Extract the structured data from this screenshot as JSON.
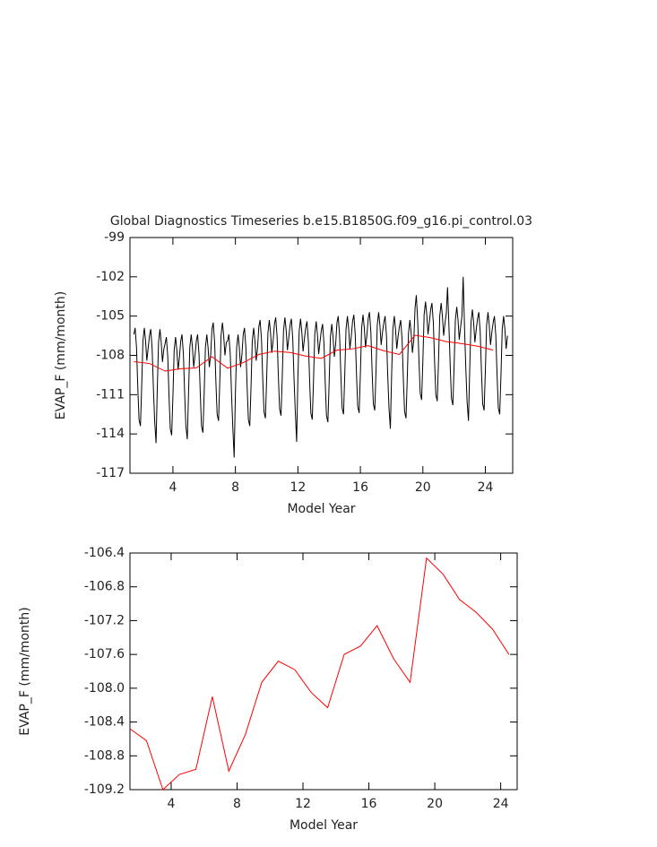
{
  "chart_data": [
    {
      "type": "line",
      "title": "Global Diagnostics Timeseries b.e15.B1850G.f09_g16.pi_control.03",
      "xlabel": "Model Year",
      "ylabel": "EVAP_F (mm/month)",
      "xlim": [
        1.25,
        25.75
      ],
      "ylim": [
        -117,
        -99
      ],
      "xticks": [
        4,
        8,
        12,
        16,
        20,
        24
      ],
      "yticks": [
        -117,
        -114,
        -111,
        -108,
        -105,
        -102,
        -99
      ],
      "series": [
        {
          "color": "#000000",
          "x": [
            1.5,
            1.58,
            1.67,
            1.75,
            1.83,
            1.92,
            2,
            2.08,
            2.17,
            2.25,
            2.33,
            2.42,
            2.5,
            2.58,
            2.67,
            2.75,
            2.83,
            2.92,
            3,
            3.08,
            3.17,
            3.25,
            3.33,
            3.42,
            3.5,
            3.58,
            3.67,
            3.75,
            3.83,
            3.92,
            4,
            4.08,
            4.17,
            4.25,
            4.33,
            4.42,
            4.5,
            4.58,
            4.67,
            4.75,
            4.83,
            4.92,
            5,
            5.08,
            5.17,
            5.25,
            5.33,
            5.42,
            5.5,
            5.58,
            5.67,
            5.75,
            5.83,
            5.92,
            6,
            6.08,
            6.17,
            6.25,
            6.33,
            6.42,
            6.5,
            6.58,
            6.67,
            6.75,
            6.83,
            6.92,
            7,
            7.08,
            7.17,
            7.25,
            7.33,
            7.42,
            7.5,
            7.58,
            7.67,
            7.75,
            7.83,
            7.92,
            8,
            8.08,
            8.17,
            8.25,
            8.33,
            8.42,
            8.5,
            8.58,
            8.67,
            8.75,
            8.83,
            8.92,
            9,
            9.08,
            9.17,
            9.25,
            9.33,
            9.42,
            9.5,
            9.58,
            9.67,
            9.75,
            9.83,
            9.92,
            10,
            10.08,
            10.17,
            10.25,
            10.33,
            10.42,
            10.5,
            10.58,
            10.67,
            10.75,
            10.83,
            10.92,
            11,
            11.08,
            11.17,
            11.25,
            11.33,
            11.42,
            11.5,
            11.58,
            11.67,
            11.75,
            11.83,
            11.92,
            12,
            12.08,
            12.17,
            12.25,
            12.33,
            12.42,
            12.5,
            12.58,
            12.67,
            12.75,
            12.83,
            12.92,
            13,
            13.08,
            13.17,
            13.25,
            13.33,
            13.42,
            13.5,
            13.58,
            13.67,
            13.75,
            13.83,
            13.92,
            14,
            14.08,
            14.17,
            14.25,
            14.33,
            14.42,
            14.5,
            14.58,
            14.67,
            14.75,
            14.83,
            14.92,
            15,
            15.08,
            15.17,
            15.25,
            15.33,
            15.42,
            15.5,
            15.58,
            15.67,
            15.75,
            15.83,
            15.92,
            16,
            16.08,
            16.17,
            16.25,
            16.33,
            16.42,
            16.5,
            16.58,
            16.67,
            16.75,
            16.83,
            16.92,
            17,
            17.08,
            17.17,
            17.25,
            17.33,
            17.42,
            17.5,
            17.58,
            17.67,
            17.75,
            17.83,
            17.92,
            18,
            18.08,
            18.17,
            18.25,
            18.33,
            18.42,
            18.5,
            18.58,
            18.67,
            18.75,
            18.83,
            18.92,
            19,
            19.08,
            19.17,
            19.25,
            19.33,
            19.42,
            19.5,
            19.58,
            19.67,
            19.75,
            19.83,
            19.92,
            20,
            20.08,
            20.17,
            20.25,
            20.33,
            20.42,
            20.5,
            20.58,
            20.67,
            20.75,
            20.83,
            20.92,
            21,
            21.08,
            21.17,
            21.25,
            21.33,
            21.42,
            21.5,
            21.58,
            21.67,
            21.75,
            21.83,
            21.92,
            22,
            22.08,
            22.17,
            22.25,
            22.33,
            22.42,
            22.5,
            22.58,
            22.67,
            22.75,
            22.83,
            22.92,
            23,
            23.08,
            23.17,
            23.25,
            23.33,
            23.42,
            23.5,
            23.58,
            23.67,
            23.75,
            23.83,
            23.92,
            24,
            24.08,
            24.17,
            24.25,
            24.33,
            24.42,
            24.5,
            24.58,
            24.67,
            24.75,
            24.83,
            24.92,
            25,
            25.08,
            25.17,
            25.25,
            25.33,
            25.42
          ],
          "values": [
            -106.4,
            -105.9,
            -107.4,
            -110.4,
            -112.9,
            -113.4,
            -110.4,
            -106.9,
            -105.9,
            -106.9,
            -108.4,
            -107.4,
            -106.5,
            -106,
            -107.5,
            -110.5,
            -113,
            -114.7,
            -110.5,
            -107,
            -106,
            -107,
            -108.5,
            -107.5,
            -107.1,
            -106.6,
            -108.1,
            -111.1,
            -113.6,
            -114.1,
            -111.1,
            -107.6,
            -106.6,
            -107.6,
            -109.1,
            -108.1,
            -106.9,
            -106.4,
            -107.9,
            -110.9,
            -113.4,
            -114.4,
            -110.9,
            -107.4,
            -106.4,
            -107.4,
            -108.9,
            -107.9,
            -106.9,
            -106.4,
            -107.9,
            -110.9,
            -113.4,
            -113.9,
            -110.9,
            -107.4,
            -106.4,
            -107.4,
            -108.9,
            -107.9,
            -106,
            -105.5,
            -107,
            -110,
            -112.5,
            -113,
            -110,
            -106.5,
            -105.5,
            -106.5,
            -108,
            -107,
            -106.9,
            -106.4,
            -107.9,
            -110.9,
            -113.4,
            -115.8,
            -110.9,
            -107.4,
            -106.4,
            -107.4,
            -108.9,
            -107.9,
            -106.4,
            -105.9,
            -107.4,
            -110.4,
            -112.9,
            -113.4,
            -110.4,
            -106.9,
            -105.9,
            -106.9,
            -108.4,
            -107.4,
            -105.8,
            -105.3,
            -106.8,
            -109.8,
            -112.3,
            -112.8,
            -109.8,
            -106.3,
            -105.3,
            -106.3,
            -107.8,
            -106.8,
            -105.6,
            -105.1,
            -106.6,
            -109.6,
            -112.1,
            -112.6,
            -109.6,
            -106.1,
            -105.1,
            -106.1,
            -107.6,
            -106.6,
            -105.7,
            -105.2,
            -106.7,
            -109.7,
            -112.2,
            -114.6,
            -109.7,
            -106.2,
            -105.2,
            -106.2,
            -107.7,
            -106.7,
            -105.9,
            -105.4,
            -106.9,
            -109.9,
            -112.4,
            -112.9,
            -109.9,
            -106.4,
            -105.4,
            -106.4,
            -107.9,
            -106.9,
            -106.1,
            -105.6,
            -107.1,
            -110.1,
            -112.6,
            -113.1,
            -110.1,
            -106.6,
            -105.6,
            -106.6,
            -108.1,
            -107.1,
            -105.5,
            -105,
            -106.5,
            -109.5,
            -112,
            -112.5,
            -109.5,
            -106,
            -105,
            -106,
            -107.5,
            -106.5,
            -105.4,
            -104.9,
            -106.4,
            -109.4,
            -111.9,
            -112.4,
            -109.4,
            -105.9,
            -104.9,
            -105.9,
            -107.4,
            -106.4,
            -105.2,
            -104.7,
            -106.2,
            -109.2,
            -111.7,
            -112.2,
            -109.2,
            -105.7,
            -104.7,
            -105.7,
            -107.2,
            -106.2,
            -105.5,
            -105,
            -106.5,
            -109.5,
            -112,
            -113.6,
            -109.5,
            -106,
            -105,
            -106,
            -107.5,
            -106.5,
            -105.8,
            -105.3,
            -106.8,
            -109.8,
            -112.3,
            -112.8,
            -109.8,
            -106.3,
            -105.3,
            -106.3,
            -107.8,
            -106.8,
            -104.4,
            -103.4,
            -105.4,
            -108.4,
            -110.9,
            -111.4,
            -108.4,
            -104.9,
            -103.9,
            -104.9,
            -106.4,
            -105.4,
            -104.5,
            -104,
            -105.5,
            -108.5,
            -111,
            -111.5,
            -108.5,
            -105,
            -104,
            -105,
            -106.5,
            -105.5,
            -104.8,
            -102.8,
            -105.8,
            -108.8,
            -111.3,
            -111.8,
            -108.8,
            -105.3,
            -104.3,
            -105.3,
            -106.8,
            -105.8,
            -105,
            -102,
            -106,
            -109,
            -111.5,
            -113,
            -109,
            -105.5,
            -104.5,
            -105.5,
            -107,
            -106,
            -105.2,
            -104.7,
            -106.2,
            -109.2,
            -111.7,
            -112.2,
            -109.2,
            -105.7,
            -104.7,
            -105.7,
            -107.2,
            -106.2,
            -105.5,
            -105,
            -106.5,
            -109.5,
            -112,
            -112.5,
            -109.5,
            -106,
            -105,
            -106,
            -107.5,
            -106.5
          ]
        },
        {
          "color": "#ff0000",
          "x": [
            1.5,
            2.5,
            3.5,
            4.5,
            5.5,
            6.5,
            7.5,
            8.5,
            9.5,
            10.5,
            11.5,
            12.5,
            13.5,
            14.5,
            15.5,
            16.5,
            17.5,
            18.5,
            19.5,
            20.5,
            21.5,
            22.5,
            23.5,
            24.5
          ],
          "values": [
            -108.48,
            -108.62,
            -109.2,
            -109.02,
            -108.96,
            -108.1,
            -108.98,
            -108.55,
            -107.93,
            -107.68,
            -107.78,
            -108.05,
            -108.23,
            -107.6,
            -107.5,
            -107.26,
            -107.65,
            -107.93,
            -106.46,
            -106.65,
            -106.95,
            -107.1,
            -107.3,
            -107.6
          ]
        }
      ]
    },
    {
      "type": "line",
      "xlabel": "Model Year",
      "ylabel": "EVAP_F (mm/month)",
      "xlim": [
        1.5,
        25
      ],
      "ylim": [
        -109.2,
        -106.4
      ],
      "xticks": [
        4,
        8,
        12,
        16,
        20,
        24
      ],
      "yticks": [
        -109.2,
        -108.8,
        -108.4,
        {
          "value": -108,
          "label": "-108.0"
        },
        -107.6,
        -107.2,
        -106.8,
        -106.4
      ],
      "series": [
        {
          "color": "#ff0000",
          "x": [
            1.5,
            2.5,
            3.5,
            4.5,
            5.5,
            6.5,
            7.5,
            8.5,
            9.5,
            10.5,
            11.5,
            12.5,
            13.5,
            14.5,
            15.5,
            16.5,
            17.5,
            18.5,
            19.5,
            20.5,
            21.5,
            22.5,
            23.5,
            24.5
          ],
          "values": [
            -108.48,
            -108.62,
            -109.2,
            -109.02,
            -108.96,
            -108.1,
            -108.98,
            -108.55,
            -107.93,
            -107.68,
            -107.78,
            -108.05,
            -108.23,
            -107.6,
            -107.5,
            -107.26,
            -107.65,
            -107.93,
            -106.46,
            -106.65,
            -106.95,
            -107.1,
            -107.3,
            -107.6
          ]
        }
      ]
    }
  ]
}
